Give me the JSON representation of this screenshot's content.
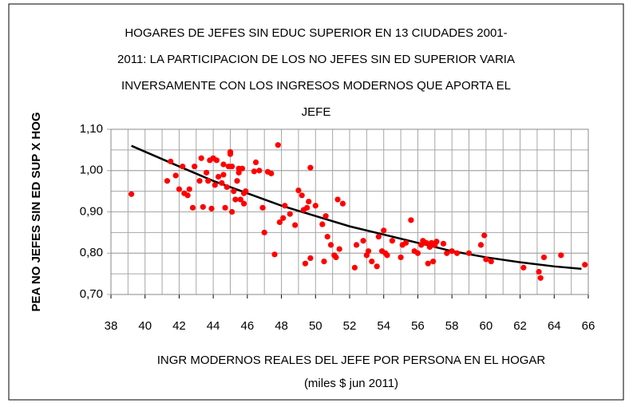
{
  "chart_data": {
    "type": "scatter",
    "title": [
      "HOGARES DE JEFES SIN  EDUC SUPERIOR   EN 13 CIUDADES 2001-",
      "2011:  LA PARTICIPACION DE LOS NO JEFES  SIN ED SUPERIOR  VARIA",
      "INVERSAMENTE  CON LOS INGRESOS MODERNOS QUE APORTA EL",
      "JEFE"
    ],
    "xlabel": [
      "INGR MODERNOS REALES DEL JEFE  POR PERSONA  EN EL HOGAR",
      "(miles $ jun 2011)"
    ],
    "ylabel": "PEA NO JEFES SIN ED SUP X HOG",
    "xlim": [
      38,
      66
    ],
    "ylim": [
      0.7,
      1.1
    ],
    "xticks": [
      38,
      40,
      42,
      44,
      46,
      48,
      50,
      52,
      54,
      56,
      58,
      60,
      62,
      64,
      66
    ],
    "yticks": [
      {
        "value": 0.7,
        "label": "0,70"
      },
      {
        "value": 0.8,
        "label": "0,80"
      },
      {
        "value": 0.9,
        "label": "0,90"
      },
      {
        "value": 1.0,
        "label": "1,00"
      },
      {
        "value": 1.1,
        "label": "1,10"
      }
    ],
    "xgrid": [
      39,
      40,
      41,
      42,
      43,
      44,
      45,
      46,
      47,
      48,
      49,
      50,
      51,
      52,
      53,
      54,
      55,
      56,
      57,
      58,
      59,
      60,
      61,
      62,
      63,
      64,
      65
    ],
    "ygrid": [
      0.75,
      0.8,
      0.85,
      0.9,
      0.95,
      1.0,
      1.05
    ],
    "grid": true,
    "series": [
      {
        "color": "#ff0000",
        "x": [
          39.2,
          41.3,
          41.5,
          41.8,
          42.0,
          42.2,
          42.3,
          42.5,
          42.6,
          42.8,
          42.9,
          43.2,
          43.3,
          43.4,
          43.6,
          43.7,
          43.8,
          43.9,
          44.0,
          44.1,
          44.2,
          44.3,
          44.5,
          44.6,
          44.6,
          44.7,
          44.8,
          44.9,
          45.0,
          45.0,
          45.1,
          45.1,
          45.2,
          45.3,
          45.4,
          45.5,
          45.5,
          45.6,
          45.7,
          45.8,
          45.8,
          45.9,
          46.4,
          46.5,
          46.7,
          46.9,
          47.0,
          47.2,
          47.4,
          47.6,
          47.8,
          47.9,
          48.1,
          48.2,
          48.5,
          48.8,
          49.0,
          49.2,
          49.3,
          49.4,
          49.5,
          49.6,
          49.7,
          49.7,
          50.0,
          50.4,
          50.5,
          50.6,
          50.7,
          50.9,
          51.1,
          51.2,
          51.3,
          51.4,
          51.6,
          52.3,
          52.4,
          52.8,
          53.0,
          53.1,
          53.3,
          53.6,
          53.7,
          53.9,
          54.0,
          54.1,
          54.2,
          54.5,
          55.0,
          55.1,
          55.3,
          55.6,
          55.8,
          56.0,
          56.2,
          56.3,
          56.5,
          56.6,
          56.7,
          56.8,
          56.9,
          57.0,
          57.1,
          57.5,
          57.7,
          58.0,
          58.3,
          59.0,
          59.7,
          59.9,
          60.0,
          60.3,
          62.2,
          63.1,
          63.2,
          63.4,
          64.4,
          65.8
        ],
        "values": [
          0.943,
          0.975,
          1.022,
          0.988,
          0.955,
          1.01,
          0.945,
          0.94,
          0.955,
          0.91,
          1.01,
          0.975,
          1.03,
          0.912,
          0.995,
          0.975,
          1.025,
          0.908,
          1.03,
          0.965,
          1.025,
          0.985,
          0.97,
          1.015,
          0.99,
          0.91,
          0.96,
          1.01,
          1.04,
          1.045,
          0.9,
          1.01,
          0.95,
          0.93,
          0.975,
          1.005,
          0.995,
          0.93,
          1.005,
          0.945,
          0.92,
          0.95,
          0.998,
          1.02,
          1.0,
          0.91,
          0.85,
          0.997,
          0.993,
          0.797,
          1.062,
          0.875,
          0.885,
          0.915,
          0.895,
          0.868,
          0.952,
          0.94,
          0.905,
          0.775,
          0.91,
          0.925,
          1.007,
          0.788,
          0.915,
          0.87,
          0.78,
          0.89,
          0.84,
          0.82,
          0.795,
          0.79,
          0.93,
          0.81,
          0.92,
          0.765,
          0.82,
          0.83,
          0.795,
          0.805,
          0.78,
          0.768,
          0.84,
          0.805,
          0.855,
          0.8,
          0.795,
          0.83,
          0.79,
          0.82,
          0.825,
          0.88,
          0.805,
          0.8,
          0.82,
          0.83,
          0.825,
          0.775,
          0.815,
          0.825,
          0.78,
          0.82,
          0.828,
          0.823,
          0.8,
          0.805,
          0.8,
          0.8,
          0.82,
          0.843,
          0.785,
          0.78,
          0.765,
          0.755,
          0.74,
          0.79,
          0.795,
          0.772
        ]
      }
    ],
    "trendline": {
      "color": "#000000",
      "x": [
        39.2,
        42,
        44,
        46,
        48,
        50,
        52,
        54,
        56,
        58,
        60,
        62,
        64,
        65.6
      ],
      "values": [
        1.06,
        1.01,
        0.975,
        0.945,
        0.915,
        0.89,
        0.865,
        0.845,
        0.825,
        0.805,
        0.79,
        0.778,
        0.768,
        0.762
      ]
    }
  }
}
